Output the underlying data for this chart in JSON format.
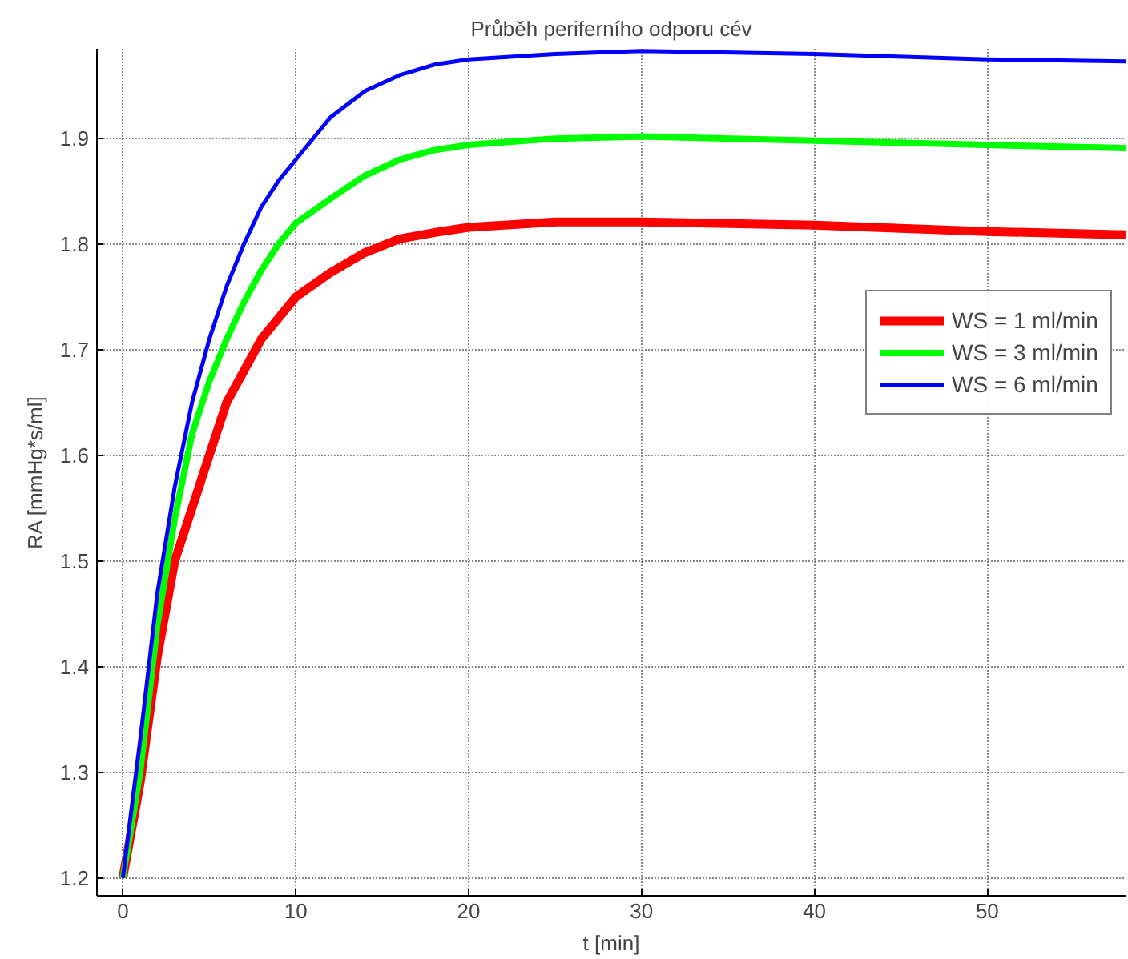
{
  "chart_data": {
    "type": "line",
    "title": "Průběh periferního odporu cév",
    "xlabel": "t [min]",
    "ylabel": "RA [mmHg*s/ml]",
    "x": [
      0,
      1,
      2,
      3,
      4,
      5,
      6,
      7,
      8,
      9,
      10,
      12,
      14,
      16,
      18,
      20,
      25,
      30,
      40,
      50,
      58
    ],
    "series": [
      {
        "name": "WS = 1 ml/min",
        "color": "#ff0000",
        "values": [
          1.2,
          1.29,
          1.41,
          1.5,
          1.55,
          1.6,
          1.65,
          1.68,
          1.71,
          1.73,
          1.75,
          1.773,
          1.792,
          1.805,
          1.811,
          1.816,
          1.821,
          1.821,
          1.818,
          1.812,
          1.809
        ]
      },
      {
        "name": "WS = 3 ml/min",
        "color": "#00ff00",
        "values": [
          1.2,
          1.3,
          1.44,
          1.54,
          1.62,
          1.67,
          1.71,
          1.745,
          1.775,
          1.8,
          1.82,
          1.843,
          1.865,
          1.88,
          1.889,
          1.894,
          1.9,
          1.902,
          1.898,
          1.894,
          1.891
        ]
      },
      {
        "name": "WS = 6 ml/min",
        "color": "#0000ff",
        "values": [
          1.2,
          1.33,
          1.47,
          1.57,
          1.65,
          1.71,
          1.76,
          1.8,
          1.835,
          1.86,
          1.88,
          1.92,
          1.945,
          1.96,
          1.97,
          1.975,
          1.98,
          1.983,
          1.98,
          1.975,
          1.973
        ]
      }
    ],
    "xlim": [
      -1.5,
      58
    ],
    "ylim": [
      1.183,
      1.985
    ],
    "xticks": [
      0,
      10,
      20,
      30,
      40,
      50
    ],
    "yticks": [
      1.2,
      1.3,
      1.4,
      1.5,
      1.6,
      1.7,
      1.8,
      1.9
    ],
    "grid": true,
    "legend": "right",
    "line_style": "solid"
  }
}
